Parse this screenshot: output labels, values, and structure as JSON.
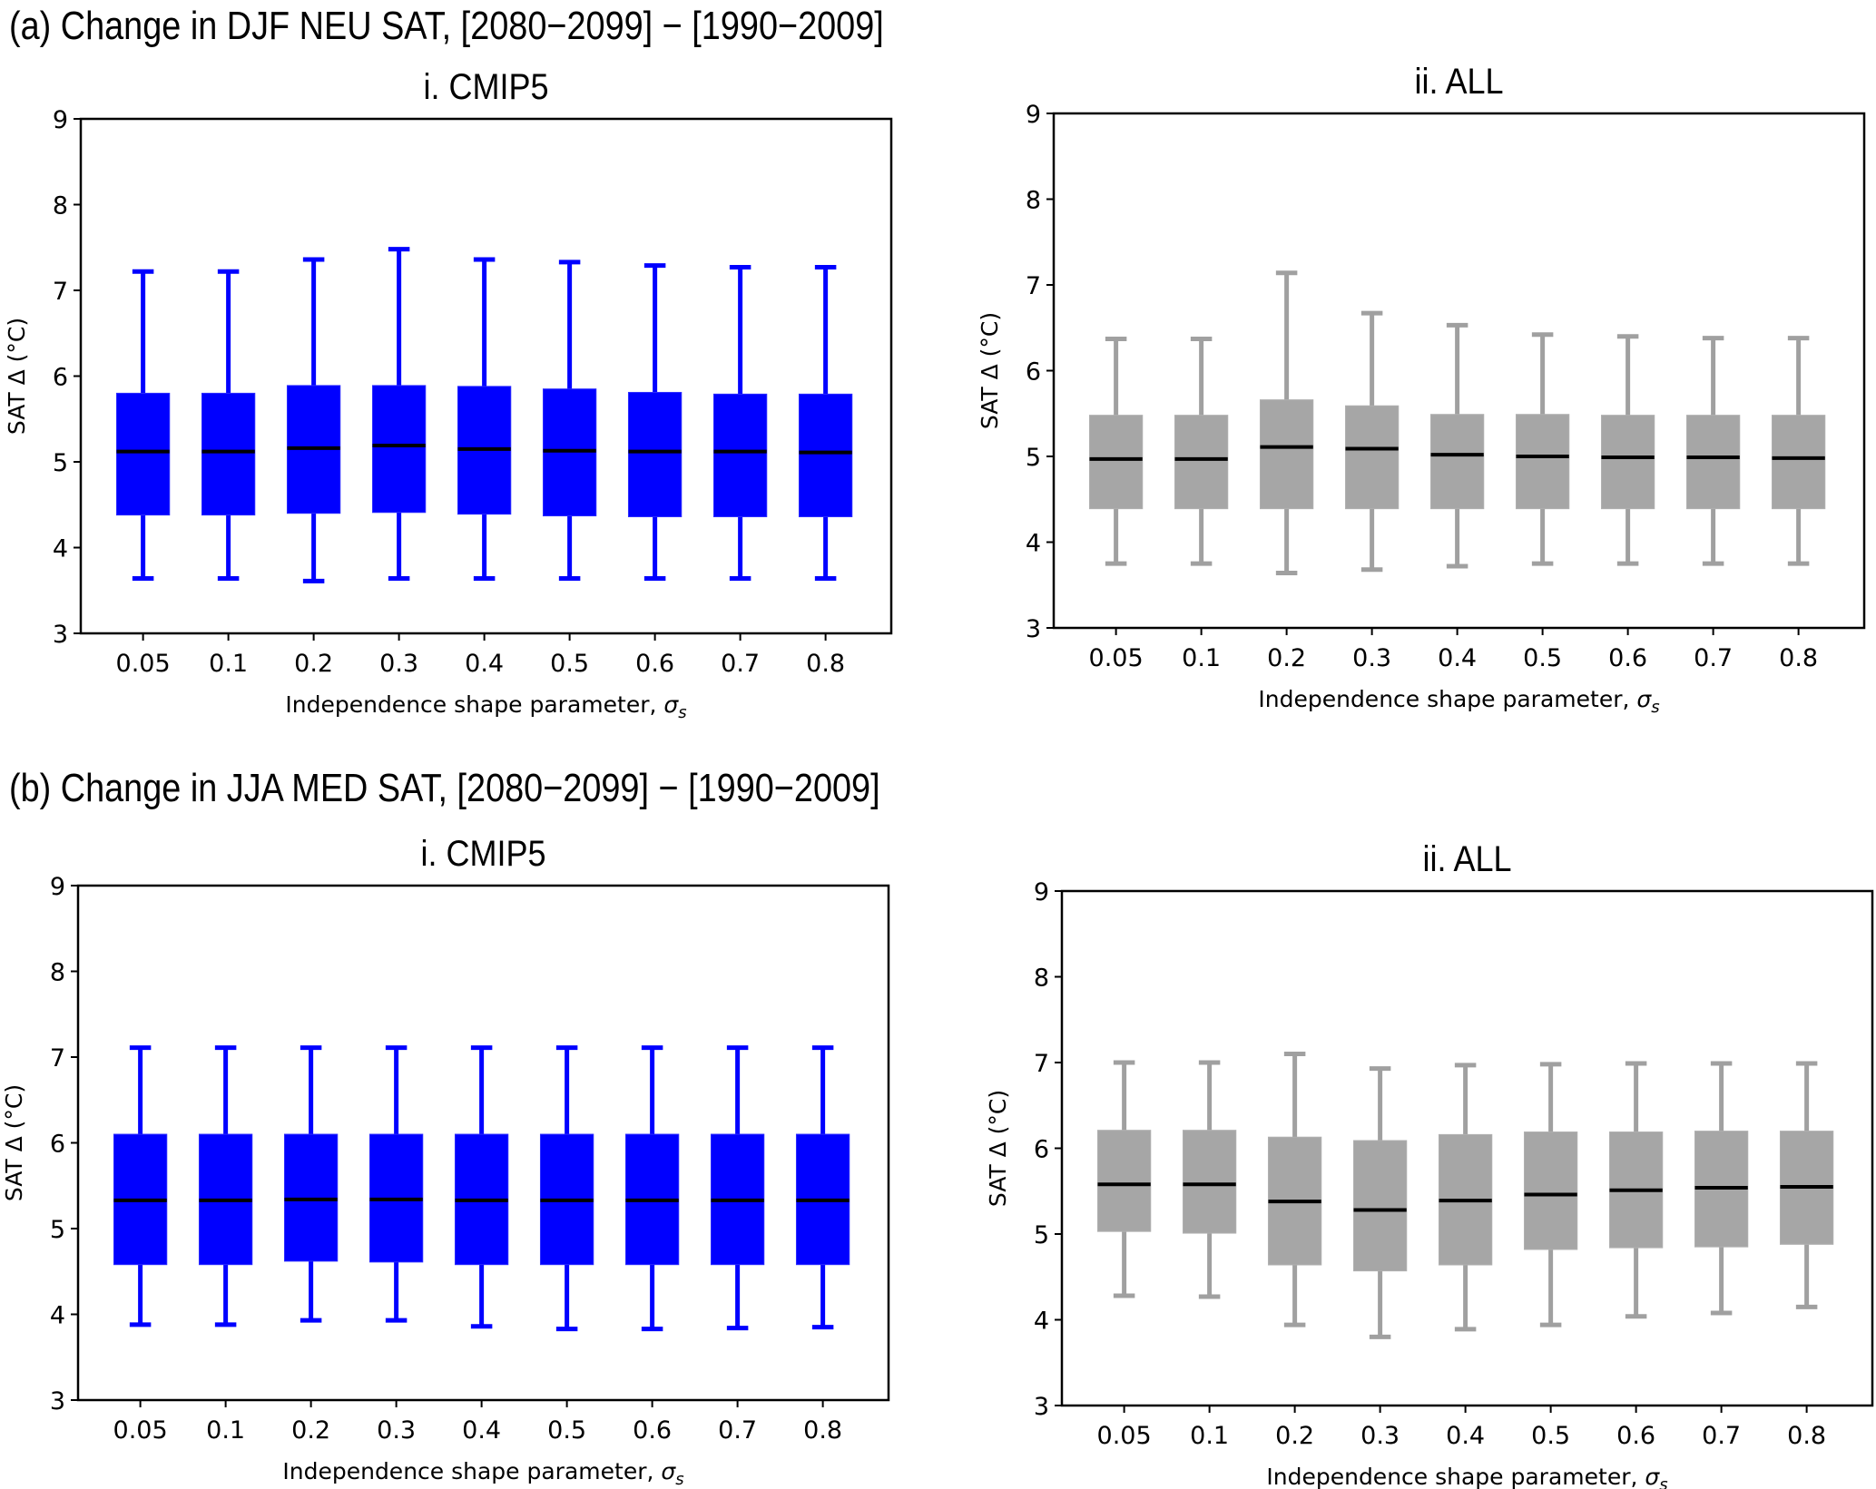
{
  "figure": {
    "section_a_title": "(a) Change in DJF NEU SAT,  [2080−2099] − [1990−2009]",
    "section_b_title": "(b) Change in JJA MED SAT,  [2080−2099] − [1990−2009]"
  },
  "colors": {
    "cmip5": "#0000ff",
    "all": "#a6a6a6",
    "all_whisker": "#a0a0a0",
    "median": "#000000",
    "axes": "#000000"
  },
  "chart_data": [
    {
      "id": "a-i",
      "type": "boxplot",
      "section": "a",
      "title": "i. CMIP5",
      "xlabel": "Independence shape parameter, σ",
      "xlabel_subscript": "s",
      "ylabel": "SAT Δ (°C)",
      "ylim": [
        3,
        9
      ],
      "yticks": [
        "3",
        "4",
        "5",
        "6",
        "7",
        "8",
        "9"
      ],
      "categories": [
        "0.05",
        "0.1",
        "0.2",
        "0.3",
        "0.4",
        "0.5",
        "0.6",
        "0.7",
        "0.8"
      ],
      "color_key": "cmip5",
      "grid": false,
      "boxes": [
        {
          "whisker_high": 7.22,
          "q3": 5.8,
          "median": 5.12,
          "q1": 4.38,
          "whisker_low": 3.64
        },
        {
          "whisker_high": 7.22,
          "q3": 5.8,
          "median": 5.12,
          "q1": 4.38,
          "whisker_low": 3.64
        },
        {
          "whisker_high": 7.36,
          "q3": 5.89,
          "median": 5.16,
          "q1": 4.4,
          "whisker_low": 3.61
        },
        {
          "whisker_high": 7.48,
          "q3": 5.89,
          "median": 5.19,
          "q1": 4.41,
          "whisker_low": 3.64
        },
        {
          "whisker_high": 7.36,
          "q3": 5.88,
          "median": 5.15,
          "q1": 4.39,
          "whisker_low": 3.64
        },
        {
          "whisker_high": 7.33,
          "q3": 5.85,
          "median": 5.13,
          "q1": 4.37,
          "whisker_low": 3.64
        },
        {
          "whisker_high": 7.29,
          "q3": 5.81,
          "median": 5.12,
          "q1": 4.36,
          "whisker_low": 3.64
        },
        {
          "whisker_high": 7.27,
          "q3": 5.79,
          "median": 5.12,
          "q1": 4.36,
          "whisker_low": 3.64
        },
        {
          "whisker_high": 7.27,
          "q3": 5.79,
          "median": 5.11,
          "q1": 4.36,
          "whisker_low": 3.64
        }
      ]
    },
    {
      "id": "a-ii",
      "type": "boxplot",
      "section": "a",
      "title": "ii. ALL",
      "xlabel": "Independence shape parameter, σ",
      "xlabel_subscript": "s",
      "ylabel": "SAT Δ (°C)",
      "ylim": [
        3,
        9
      ],
      "yticks": [
        "3",
        "4",
        "5",
        "6",
        "7",
        "8",
        "9"
      ],
      "categories": [
        "0.05",
        "0.1",
        "0.2",
        "0.3",
        "0.4",
        "0.5",
        "0.6",
        "0.7",
        "0.8"
      ],
      "color_key": "all",
      "grid": false,
      "boxes": [
        {
          "whisker_high": 6.37,
          "q3": 5.48,
          "median": 4.97,
          "q1": 4.39,
          "whisker_low": 3.75
        },
        {
          "whisker_high": 6.37,
          "q3": 5.48,
          "median": 4.97,
          "q1": 4.39,
          "whisker_low": 3.75
        },
        {
          "whisker_high": 7.14,
          "q3": 5.66,
          "median": 5.11,
          "q1": 4.39,
          "whisker_low": 3.64
        },
        {
          "whisker_high": 6.67,
          "q3": 5.59,
          "median": 5.09,
          "q1": 4.39,
          "whisker_low": 3.68
        },
        {
          "whisker_high": 6.53,
          "q3": 5.49,
          "median": 5.02,
          "q1": 4.39,
          "whisker_low": 3.72
        },
        {
          "whisker_high": 6.42,
          "q3": 5.49,
          "median": 5.0,
          "q1": 4.39,
          "whisker_low": 3.75
        },
        {
          "whisker_high": 6.4,
          "q3": 5.48,
          "median": 4.99,
          "q1": 4.39,
          "whisker_low": 3.75
        },
        {
          "whisker_high": 6.38,
          "q3": 5.48,
          "median": 4.99,
          "q1": 4.39,
          "whisker_low": 3.75
        },
        {
          "whisker_high": 6.38,
          "q3": 5.48,
          "median": 4.98,
          "q1": 4.39,
          "whisker_low": 3.75
        }
      ]
    },
    {
      "id": "b-i",
      "type": "boxplot",
      "section": "b",
      "title": "i. CMIP5",
      "xlabel": "Independence shape parameter, σ",
      "xlabel_subscript": "s",
      "ylabel": "SAT Δ (°C)",
      "ylim": [
        3,
        9
      ],
      "yticks": [
        "3",
        "4",
        "5",
        "6",
        "7",
        "8",
        "9"
      ],
      "categories": [
        "0.05",
        "0.1",
        "0.2",
        "0.3",
        "0.4",
        "0.5",
        "0.6",
        "0.7",
        "0.8"
      ],
      "color_key": "cmip5",
      "grid": false,
      "boxes": [
        {
          "whisker_high": 7.11,
          "q3": 6.1,
          "median": 5.33,
          "q1": 4.58,
          "whisker_low": 3.88
        },
        {
          "whisker_high": 7.11,
          "q3": 6.1,
          "median": 5.33,
          "q1": 4.58,
          "whisker_low": 3.88
        },
        {
          "whisker_high": 7.11,
          "q3": 6.1,
          "median": 5.34,
          "q1": 4.62,
          "whisker_low": 3.93
        },
        {
          "whisker_high": 7.11,
          "q3": 6.1,
          "median": 5.34,
          "q1": 4.61,
          "whisker_low": 3.93
        },
        {
          "whisker_high": 7.11,
          "q3": 6.1,
          "median": 5.33,
          "q1": 4.58,
          "whisker_low": 3.86
        },
        {
          "whisker_high": 7.11,
          "q3": 6.1,
          "median": 5.33,
          "q1": 4.58,
          "whisker_low": 3.83
        },
        {
          "whisker_high": 7.11,
          "q3": 6.1,
          "median": 5.33,
          "q1": 4.58,
          "whisker_low": 3.83
        },
        {
          "whisker_high": 7.11,
          "q3": 6.1,
          "median": 5.33,
          "q1": 4.58,
          "whisker_low": 3.84
        },
        {
          "whisker_high": 7.11,
          "q3": 6.1,
          "median": 5.33,
          "q1": 4.58,
          "whisker_low": 3.85
        }
      ]
    },
    {
      "id": "b-ii",
      "type": "boxplot",
      "section": "b",
      "title": "ii. ALL",
      "xlabel": "Independence shape parameter, σ",
      "xlabel_subscript": "s",
      "ylabel": "SAT Δ (°C)",
      "ylim": [
        3,
        9
      ],
      "yticks": [
        "3",
        "4",
        "5",
        "6",
        "7",
        "8",
        "9"
      ],
      "categories": [
        "0.05",
        "0.1",
        "0.2",
        "0.3",
        "0.4",
        "0.5",
        "0.6",
        "0.7",
        "0.8"
      ],
      "color_key": "all",
      "grid": false,
      "boxes": [
        {
          "whisker_high": 7.0,
          "q3": 6.21,
          "median": 5.58,
          "q1": 5.03,
          "whisker_low": 4.28
        },
        {
          "whisker_high": 7.0,
          "q3": 6.21,
          "median": 5.58,
          "q1": 5.01,
          "whisker_low": 4.27
        },
        {
          "whisker_high": 7.1,
          "q3": 6.13,
          "median": 5.38,
          "q1": 4.64,
          "whisker_low": 3.94
        },
        {
          "whisker_high": 6.93,
          "q3": 6.09,
          "median": 5.28,
          "q1": 4.57,
          "whisker_low": 3.8
        },
        {
          "whisker_high": 6.97,
          "q3": 6.16,
          "median": 5.39,
          "q1": 4.64,
          "whisker_low": 3.89
        },
        {
          "whisker_high": 6.98,
          "q3": 6.19,
          "median": 5.46,
          "q1": 4.82,
          "whisker_low": 3.94
        },
        {
          "whisker_high": 6.99,
          "q3": 6.19,
          "median": 5.51,
          "q1": 4.84,
          "whisker_low": 4.04
        },
        {
          "whisker_high": 6.99,
          "q3": 6.2,
          "median": 5.54,
          "q1": 4.85,
          "whisker_low": 4.08
        },
        {
          "whisker_high": 6.99,
          "q3": 6.2,
          "median": 5.55,
          "q1": 4.88,
          "whisker_low": 4.15
        }
      ]
    }
  ]
}
